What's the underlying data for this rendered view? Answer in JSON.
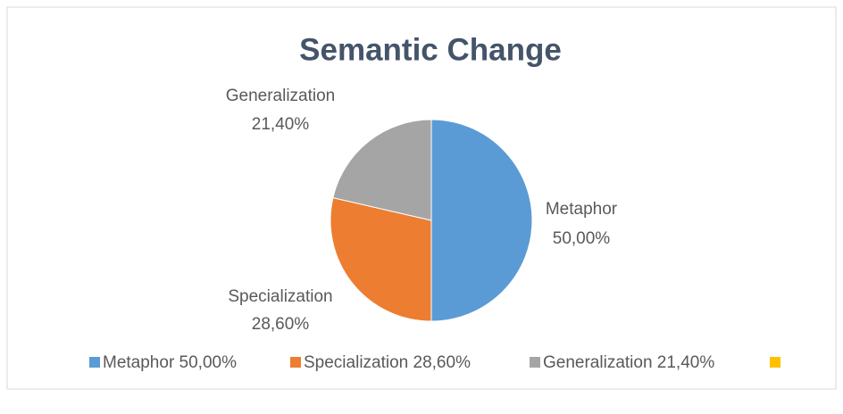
{
  "chart_data": {
    "type": "pie",
    "title": "Semantic Change",
    "categories": [
      "Metaphor",
      "Specialization",
      "Generalization",
      null
    ],
    "values": [
      50,
      28.6,
      21.4,
      null
    ],
    "value_labels": [
      "50,00%",
      "28,60%",
      "21,40%",
      null
    ],
    "legend": [
      "Metaphor 50,00%",
      "Specialization 28,60%",
      "Generalization 21,40%",
      null
    ],
    "colors": [
      "#5b9bd5",
      "#ed7d31",
      "#a5a5a5",
      "#ffc000"
    ],
    "legend_position": "bottom"
  }
}
